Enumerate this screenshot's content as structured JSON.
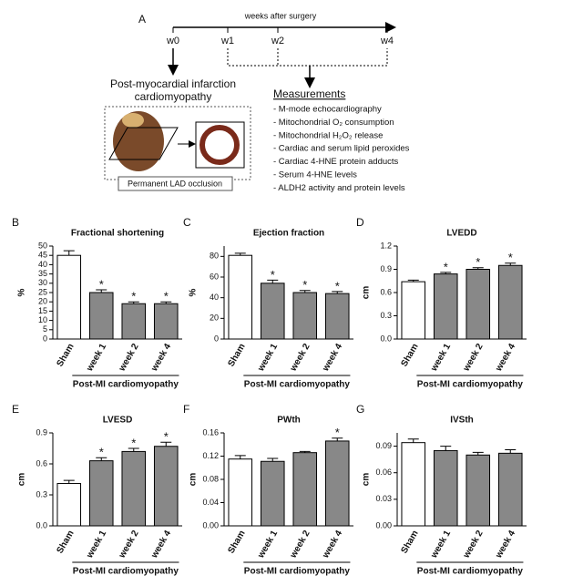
{
  "diagram": {
    "panel": "A",
    "timeline_label": "weeks after surgery",
    "timepoints": [
      "w0",
      "w1",
      "w2",
      "w4"
    ],
    "model_title": [
      "Post-myocardial infarction",
      "cardiomyopathy"
    ],
    "procedure": "Permanent LAD occlusion",
    "measurements_title": "Measurements",
    "measurements": [
      "- M-mode echocardiography",
      "- Mitochondrial O₂ consumption",
      "- Mitochondrial H₂O₂ release",
      "- Cardiac and serum lipid peroxides",
      "- Cardiac 4-HNE protein adducts",
      "- Serum 4-HNE levels",
      "- ALDH2 activity and protein levels"
    ]
  },
  "chart_data": [
    {
      "type": "bar",
      "panel": "B",
      "title": "Fractional shortening",
      "ylabel": "%",
      "group_label": "Post-MI cardiomyopathy",
      "categories": [
        "Sham",
        "week 1",
        "week 2",
        "week 4"
      ],
      "values": [
        45,
        25,
        19,
        19
      ],
      "errors": [
        2.5,
        1.5,
        1,
        1
      ],
      "significance": [
        null,
        "*",
        "*",
        "*"
      ],
      "colors": [
        "#ffffff",
        "#888888",
        "#888888",
        "#888888"
      ],
      "ylim": [
        0,
        50
      ],
      "yticks": [
        0,
        5,
        10,
        15,
        20,
        25,
        30,
        35,
        40,
        45,
        50
      ]
    },
    {
      "type": "bar",
      "panel": "C",
      "title": "Ejection fraction",
      "ylabel": "%",
      "group_label": "Post-MI cardiomyopathy",
      "categories": [
        "Sham",
        "week 1",
        "week 2",
        "week 4"
      ],
      "values": [
        81,
        54,
        45,
        44
      ],
      "errors": [
        2,
        3,
        2,
        2
      ],
      "significance": [
        null,
        "*",
        "*",
        "*"
      ],
      "colors": [
        "#ffffff",
        "#888888",
        "#888888",
        "#888888"
      ],
      "ylim": [
        0,
        90
      ],
      "yticks": [
        0,
        20,
        40,
        60,
        80
      ]
    },
    {
      "type": "bar",
      "panel": "D",
      "title": "LVEDD",
      "ylabel": "cm",
      "group_label": "Post-MI cardiomyopathy",
      "categories": [
        "Sham",
        "week 1",
        "week 2",
        "week 4"
      ],
      "values": [
        0.74,
        0.84,
        0.9,
        0.95
      ],
      "errors": [
        0.02,
        0.02,
        0.02,
        0.03
      ],
      "significance": [
        null,
        "*",
        "*",
        "*"
      ],
      "colors": [
        "#ffffff",
        "#888888",
        "#888888",
        "#888888"
      ],
      "ylim": [
        0,
        1.2
      ],
      "yticks": [
        {
          "value": 0,
          "label": "0.0"
        },
        0.3,
        0.6,
        0.9,
        1.2
      ]
    },
    {
      "type": "bar",
      "panel": "E",
      "title": "LVESD",
      "ylabel": "cm",
      "group_label": "Post-MI cardiomyopathy",
      "categories": [
        "Sham",
        "week 1",
        "week 2",
        "week 4"
      ],
      "values": [
        0.41,
        0.63,
        0.72,
        0.77
      ],
      "errors": [
        0.03,
        0.03,
        0.03,
        0.04
      ],
      "significance": [
        null,
        "*",
        "*",
        "*"
      ],
      "colors": [
        "#ffffff",
        "#888888",
        "#888888",
        "#888888"
      ],
      "ylim": [
        0,
        0.9
      ],
      "yticks": [
        {
          "value": 0,
          "label": "0.0"
        },
        0.3,
        0.6,
        0.9
      ]
    },
    {
      "type": "bar",
      "panel": "F",
      "title": "PWth",
      "ylabel": "cm",
      "group_label": "Post-MI cardiomyopathy",
      "categories": [
        "Sham",
        "week 1",
        "week 2",
        "week 4"
      ],
      "values": [
        0.115,
        0.111,
        0.126,
        0.146
      ],
      "errors": [
        0.006,
        0.005,
        0.002,
        0.005
      ],
      "significance": [
        null,
        null,
        null,
        "*"
      ],
      "colors": [
        "#ffffff",
        "#888888",
        "#888888",
        "#888888"
      ],
      "ylim": [
        0,
        0.16
      ],
      "yticks": [
        {
          "value": 0,
          "label": "0.00"
        },
        {
          "value": 0.04,
          "label": "0.04"
        },
        {
          "value": 0.08,
          "label": "0.08"
        },
        {
          "value": 0.12,
          "label": "0.12"
        },
        {
          "value": 0.16,
          "label": "0.16"
        }
      ]
    },
    {
      "type": "bar",
      "panel": "G",
      "title": "IVSth",
      "ylabel": "cm",
      "group_label": "Post-MI cardiomyopathy",
      "categories": [
        "Sham",
        "week 1",
        "week 2",
        "week 4"
      ],
      "values": [
        0.094,
        0.085,
        0.08,
        0.082
      ],
      "errors": [
        0.004,
        0.005,
        0.003,
        0.004
      ],
      "significance": [
        null,
        null,
        null,
        null
      ],
      "colors": [
        "#ffffff",
        "#888888",
        "#888888",
        "#888888"
      ],
      "ylim": [
        0,
        0.105
      ],
      "yticks": [
        {
          "value": 0,
          "label": "0.00"
        },
        {
          "value": 0.03,
          "label": "0.03"
        },
        {
          "value": 0.06,
          "label": "0.06"
        },
        {
          "value": 0.09,
          "label": "0.09"
        }
      ]
    }
  ]
}
